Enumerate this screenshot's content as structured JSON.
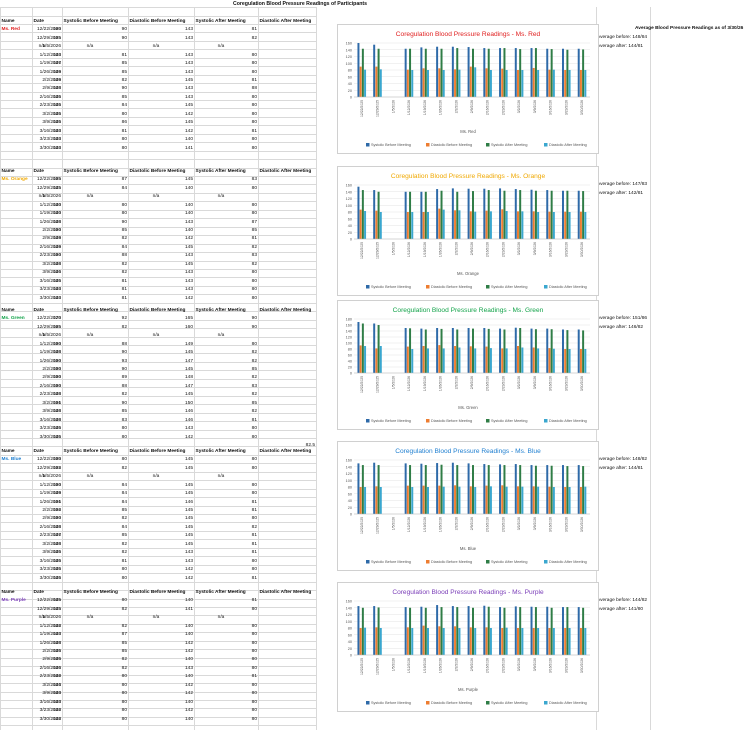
{
  "sheet_title": "Coregulation Blood Pressure Readings of Participants",
  "headers": [
    "Name",
    "Date",
    "Systolic Before Meeting",
    "Diastolic Before Meeting",
    "Systolic After Meeting",
    "Diastolic After Meeting"
  ],
  "avg_title": "Average Blood Pressure Readings as of 3/30/26",
  "dates": [
    "12/22/2025",
    "12/29/2025",
    "1/5/2026",
    "1/12/2026",
    "1/19/2026",
    "1/26/2026",
    "2/2/2026",
    "2/9/2026",
    "2/16/2026",
    "2/23/2026",
    "3/2/2026",
    "3/9/2026",
    "3/16/2026",
    "3/23/2026",
    "3/30/2026"
  ],
  "x_tick_labels": [
    "12/22/2025",
    "12/29/2025",
    "1/5/2026",
    "1/12/2026",
    "1/19/2026",
    "1/26/2026",
    "2/2/2026",
    "2/9/2026",
    "2/16/2026",
    "2/23/2026",
    "3/2/2026",
    "3/9/2026",
    "3/16/2026",
    "3/23/2026",
    "3/30/2026"
  ],
  "legend_names": [
    "Systolic Before Meeting",
    "Diastolic Before Meeting",
    "Systolic After Meeting",
    "Diastolic After Meeting"
  ],
  "series_colors": [
    "#2e6aa8",
    "#ed7d31",
    "#2f7d46",
    "#3aa7cf"
  ],
  "y_ticks": [
    "0",
    "20",
    "40",
    "60",
    "80",
    "100",
    "120",
    "140",
    "160"
  ],
  "participants": [
    {
      "name": "Ms. Red",
      "color": "#e02020",
      "chart_title": "Coregulation Blood Pressure Readings - Ms. Red",
      "xlabel": "Ms. Red",
      "avg_before": "Average before: 148/84",
      "avg_after": "Average after: 144/81",
      "rows": [
        [
          "160",
          "90",
          "143",
          "81"
        ],
        [
          "155",
          "90",
          "143",
          "82"
        ],
        [
          "n/a",
          "n/a",
          "n/a",
          "n/a"
        ],
        [
          "143",
          "81",
          "143",
          "80"
        ],
        [
          "147",
          "85",
          "143",
          "80"
        ],
        [
          "149",
          "85",
          "143",
          "80"
        ],
        [
          "149",
          "82",
          "145",
          "81"
        ],
        [
          "148",
          "90",
          "143",
          "88"
        ],
        [
          "145",
          "85",
          "143",
          "80"
        ],
        [
          "145",
          "84",
          "145",
          "80"
        ],
        [
          "145",
          "80",
          "142",
          "80"
        ],
        [
          "145",
          "86",
          "145",
          "80"
        ],
        [
          "143",
          "81",
          "142",
          "81"
        ],
        [
          "143",
          "80",
          "140",
          "80"
        ],
        [
          "143",
          "80",
          "141",
          "80"
        ]
      ]
    },
    {
      "name": "Ms. Orange",
      "color": "#f0a800",
      "chart_title": "Coregulation Blood Pressure Readings - Ms. Orange",
      "xlabel": "Ms. Orange",
      "avg_before": "Average before: 147/83",
      "avg_after": "Average after: 142/81",
      "rows": [
        [
          "155",
          "87",
          "145",
          "83"
        ],
        [
          "145",
          "84",
          "140",
          "80"
        ],
        [
          "n/a",
          "n/a",
          "n/a",
          "n/a"
        ],
        [
          "140",
          "80",
          "140",
          "80"
        ],
        [
          "140",
          "80",
          "140",
          "80"
        ],
        [
          "148",
          "90",
          "143",
          "87"
        ],
        [
          "150",
          "85",
          "140",
          "85"
        ],
        [
          "149",
          "82",
          "142",
          "81"
        ],
        [
          "149",
          "84",
          "145",
          "82"
        ],
        [
          "150",
          "88",
          "143",
          "83"
        ],
        [
          "148",
          "82",
          "145",
          "82"
        ],
        [
          "146",
          "82",
          "143",
          "80"
        ],
        [
          "145",
          "81",
          "143",
          "80"
        ],
        [
          "143",
          "81",
          "143",
          "80"
        ],
        [
          "143",
          "81",
          "142",
          "80"
        ]
      ]
    },
    {
      "name": "Ms. Green",
      "color": "#13a34a",
      "chart_title": "Coregulation Blood Pressure Readings - Ms. Green",
      "xlabel": "Ms. Green",
      "avg_before": "Average before: 151/86",
      "avg_after": "Average after: 146/82",
      "rows": [
        [
          "170",
          "92",
          "165",
          "90"
        ],
        [
          "165",
          "82",
          "160",
          "90"
        ],
        [
          "n/a",
          "n/a",
          "n/a",
          "n/a"
        ],
        [
          "150",
          "88",
          "149",
          "80"
        ],
        [
          "148",
          "90",
          "145",
          "82"
        ],
        [
          "150",
          "93",
          "147",
          "82"
        ],
        [
          "150",
          "90",
          "145",
          "85"
        ],
        [
          "150",
          "89",
          "148",
          "82"
        ],
        [
          "150",
          "88",
          "147",
          "83"
        ],
        [
          "148",
          "82",
          "145",
          "82"
        ],
        [
          "151",
          "90",
          "150",
          "85"
        ],
        [
          "148",
          "85",
          "146",
          "82"
        ],
        [
          "148",
          "83",
          "146",
          "81"
        ],
        [
          "145",
          "80",
          "143",
          "80"
        ],
        [
          "145",
          "80",
          "142",
          "80"
        ]
      ],
      "extra_value": "82.5"
    },
    {
      "name": "Ms. Blue",
      "color": "#1f7fd0",
      "chart_title": "Coregulation Blood Pressure Readings - Ms. Blue",
      "xlabel": "Ms. Blue",
      "avg_before": "Average before: 148/82",
      "avg_after": "Average after: 144/81",
      "rows": [
        [
          "150",
          "80",
          "145",
          "80"
        ],
        [
          "152",
          "82",
          "145",
          "80"
        ],
        [
          "n/a",
          "n/a",
          "n/a",
          "n/a"
        ],
        [
          "150",
          "84",
          "145",
          "80"
        ],
        [
          "149",
          "84",
          "145",
          "80"
        ],
        [
          "151",
          "84",
          "146",
          "81"
        ],
        [
          "152",
          "85",
          "145",
          "81"
        ],
        [
          "150",
          "82",
          "145",
          "80"
        ],
        [
          "148",
          "84",
          "145",
          "82"
        ],
        [
          "147",
          "85",
          "145",
          "81"
        ],
        [
          "148",
          "82",
          "145",
          "81"
        ],
        [
          "145",
          "82",
          "143",
          "81"
        ],
        [
          "145",
          "81",
          "143",
          "80"
        ],
        [
          "145",
          "80",
          "142",
          "80"
        ],
        [
          "145",
          "80",
          "142",
          "81"
        ]
      ]
    },
    {
      "name": "Ms. Purple",
      "color": "#7a3db8",
      "chart_title": "Coregulation Blood Pressure Readings - Ms. Purple",
      "xlabel": "Ms. Purple",
      "avg_before": "Average before: 144/82",
      "avg_after": "Average after: 141/80",
      "rows": [
        [
          "145",
          "80",
          "140",
          "81"
        ],
        [
          "145",
          "82",
          "141",
          "80"
        ],
        [
          "n/a",
          "n/a",
          "n/a",
          "n/a"
        ],
        [
          "142",
          "82",
          "140",
          "80"
        ],
        [
          "143",
          "87",
          "140",
          "80"
        ],
        [
          "148",
          "85",
          "142",
          "80"
        ],
        [
          "145",
          "85",
          "142",
          "80"
        ],
        [
          "145",
          "82",
          "140",
          "80"
        ],
        [
          "146",
          "82",
          "143",
          "80"
        ],
        [
          "142",
          "80",
          "140",
          "81"
        ],
        [
          "144",
          "80",
          "142",
          "80"
        ],
        [
          "143",
          "80",
          "142",
          "80"
        ],
        [
          "143",
          "80",
          "140",
          "80"
        ],
        [
          "142",
          "80",
          "142",
          "80"
        ],
        [
          "142",
          "80",
          "140",
          "80"
        ]
      ]
    }
  ],
  "chart_data": [
    {
      "type": "bar",
      "title": "Coregulation Blood Pressure Readings - Ms. Red",
      "xlabel": "Ms. Red",
      "ylim": [
        0,
        160
      ],
      "categories": [
        "12/22/2025",
        "12/29/2025",
        "1/5/2026",
        "1/12/2026",
        "1/19/2026",
        "1/26/2026",
        "2/2/2026",
        "2/9/2026",
        "2/16/2026",
        "2/23/2026",
        "3/2/2026",
        "3/9/2026",
        "3/16/2026",
        "3/23/2026",
        "3/30/2026"
      ],
      "series": [
        {
          "name": "Systolic Before Meeting",
          "values": [
            160,
            155,
            null,
            143,
            147,
            149,
            149,
            148,
            145,
            145,
            145,
            145,
            143,
            143,
            143
          ]
        },
        {
          "name": "Diastolic Before Meeting",
          "values": [
            90,
            90,
            null,
            81,
            85,
            85,
            82,
            90,
            85,
            84,
            80,
            86,
            81,
            80,
            80
          ]
        },
        {
          "name": "Systolic After Meeting",
          "values": [
            143,
            143,
            null,
            143,
            143,
            143,
            145,
            143,
            143,
            145,
            142,
            145,
            142,
            140,
            141
          ]
        },
        {
          "name": "Diastolic After Meeting",
          "values": [
            81,
            82,
            null,
            80,
            80,
            80,
            81,
            88,
            80,
            80,
            80,
            80,
            81,
            80,
            80
          ]
        }
      ]
    },
    {
      "type": "bar",
      "title": "Coregulation Blood Pressure Readings - Ms. Orange",
      "xlabel": "Ms. Orange",
      "ylim": [
        0,
        160
      ],
      "categories": [
        "12/22/2025",
        "12/29/2025",
        "1/5/2026",
        "1/12/2026",
        "1/19/2026",
        "1/26/2026",
        "2/2/2026",
        "2/9/2026",
        "2/16/2026",
        "2/23/2026",
        "3/2/2026",
        "3/9/2026",
        "3/16/2026",
        "3/23/2026",
        "3/30/2026"
      ],
      "series": [
        {
          "name": "Systolic Before Meeting",
          "values": [
            155,
            145,
            null,
            140,
            140,
            148,
            150,
            149,
            149,
            150,
            148,
            146,
            145,
            143,
            143
          ]
        },
        {
          "name": "Diastolic Before Meeting",
          "values": [
            87,
            84,
            null,
            80,
            80,
            90,
            85,
            82,
            84,
            88,
            82,
            82,
            81,
            81,
            81
          ]
        },
        {
          "name": "Systolic After Meeting",
          "values": [
            145,
            140,
            null,
            140,
            140,
            143,
            140,
            142,
            145,
            143,
            145,
            143,
            143,
            143,
            142
          ]
        },
        {
          "name": "Diastolic After Meeting",
          "values": [
            83,
            80,
            null,
            80,
            80,
            87,
            85,
            81,
            82,
            83,
            82,
            80,
            80,
            80,
            80
          ]
        }
      ]
    },
    {
      "type": "bar",
      "title": "Coregulation Blood Pressure Readings - Ms. Green",
      "xlabel": "Ms. Green",
      "ylim": [
        0,
        180
      ],
      "categories": [
        "12/22/2025",
        "12/29/2025",
        "1/5/2026",
        "1/12/2026",
        "1/19/2026",
        "1/26/2026",
        "2/2/2026",
        "2/9/2026",
        "2/16/2026",
        "2/23/2026",
        "3/2/2026",
        "3/9/2026",
        "3/16/2026",
        "3/23/2026",
        "3/30/2026"
      ],
      "series": [
        {
          "name": "Systolic Before Meeting",
          "values": [
            170,
            165,
            null,
            150,
            148,
            150,
            150,
            150,
            150,
            148,
            151,
            148,
            148,
            145,
            145
          ]
        },
        {
          "name": "Diastolic Before Meeting",
          "values": [
            92,
            82,
            null,
            88,
            90,
            93,
            90,
            89,
            88,
            82,
            90,
            85,
            83,
            80,
            80
          ]
        },
        {
          "name": "Systolic After Meeting",
          "values": [
            165,
            160,
            null,
            149,
            145,
            147,
            145,
            148,
            147,
            145,
            150,
            146,
            146,
            143,
            142
          ]
        },
        {
          "name": "Diastolic After Meeting",
          "values": [
            90,
            90,
            null,
            80,
            82,
            82,
            85,
            82,
            83,
            82,
            85,
            82,
            81,
            80,
            80
          ]
        }
      ]
    },
    {
      "type": "bar",
      "title": "Coregulation Blood Pressure Readings - Ms. Blue",
      "xlabel": "Ms. Blue",
      "ylim": [
        0,
        160
      ],
      "categories": [
        "12/22/2025",
        "12/29/2025",
        "1/5/2026",
        "1/12/2026",
        "1/19/2026",
        "1/26/2026",
        "2/2/2026",
        "2/9/2026",
        "2/16/2026",
        "2/23/2026",
        "3/2/2026",
        "3/9/2026",
        "3/16/2026",
        "3/23/2026",
        "3/30/2026"
      ],
      "series": [
        {
          "name": "Systolic Before Meeting",
          "values": [
            150,
            152,
            null,
            150,
            149,
            151,
            152,
            150,
            148,
            147,
            148,
            145,
            145,
            145,
            145
          ]
        },
        {
          "name": "Diastolic Before Meeting",
          "values": [
            80,
            82,
            null,
            84,
            84,
            84,
            85,
            82,
            84,
            85,
            82,
            82,
            81,
            80,
            80
          ]
        },
        {
          "name": "Systolic After Meeting",
          "values": [
            145,
            145,
            null,
            145,
            145,
            146,
            145,
            145,
            145,
            145,
            145,
            143,
            143,
            142,
            142
          ]
        },
        {
          "name": "Diastolic After Meeting",
          "values": [
            80,
            80,
            null,
            80,
            80,
            81,
            81,
            80,
            82,
            81,
            81,
            81,
            80,
            80,
            81
          ]
        }
      ]
    },
    {
      "type": "bar",
      "title": "Coregulation Blood Pressure Readings - Ms. Purple",
      "xlabel": "Ms. Purple",
      "ylim": [
        0,
        160
      ],
      "categories": [
        "12/22/2025",
        "12/29/2025",
        "1/5/2026",
        "1/12/2026",
        "1/19/2026",
        "1/26/2026",
        "2/2/2026",
        "2/9/2026",
        "2/16/2026",
        "2/23/2026",
        "3/2/2026",
        "3/9/2026",
        "3/16/2026",
        "3/23/2026",
        "3/30/2026"
      ],
      "series": [
        {
          "name": "Systolic Before Meeting",
          "values": [
            145,
            145,
            null,
            142,
            143,
            148,
            145,
            145,
            146,
            142,
            144,
            143,
            143,
            142,
            142
          ]
        },
        {
          "name": "Diastolic Before Meeting",
          "values": [
            80,
            82,
            null,
            82,
            87,
            85,
            85,
            82,
            82,
            80,
            80,
            80,
            80,
            80,
            80
          ]
        },
        {
          "name": "Systolic After Meeting",
          "values": [
            140,
            141,
            null,
            140,
            140,
            142,
            142,
            140,
            143,
            140,
            142,
            142,
            140,
            142,
            140
          ]
        },
        {
          "name": "Diastolic After Meeting",
          "values": [
            81,
            80,
            null,
            80,
            80,
            80,
            80,
            80,
            80,
            81,
            80,
            80,
            80,
            80,
            80
          ]
        }
      ]
    }
  ]
}
